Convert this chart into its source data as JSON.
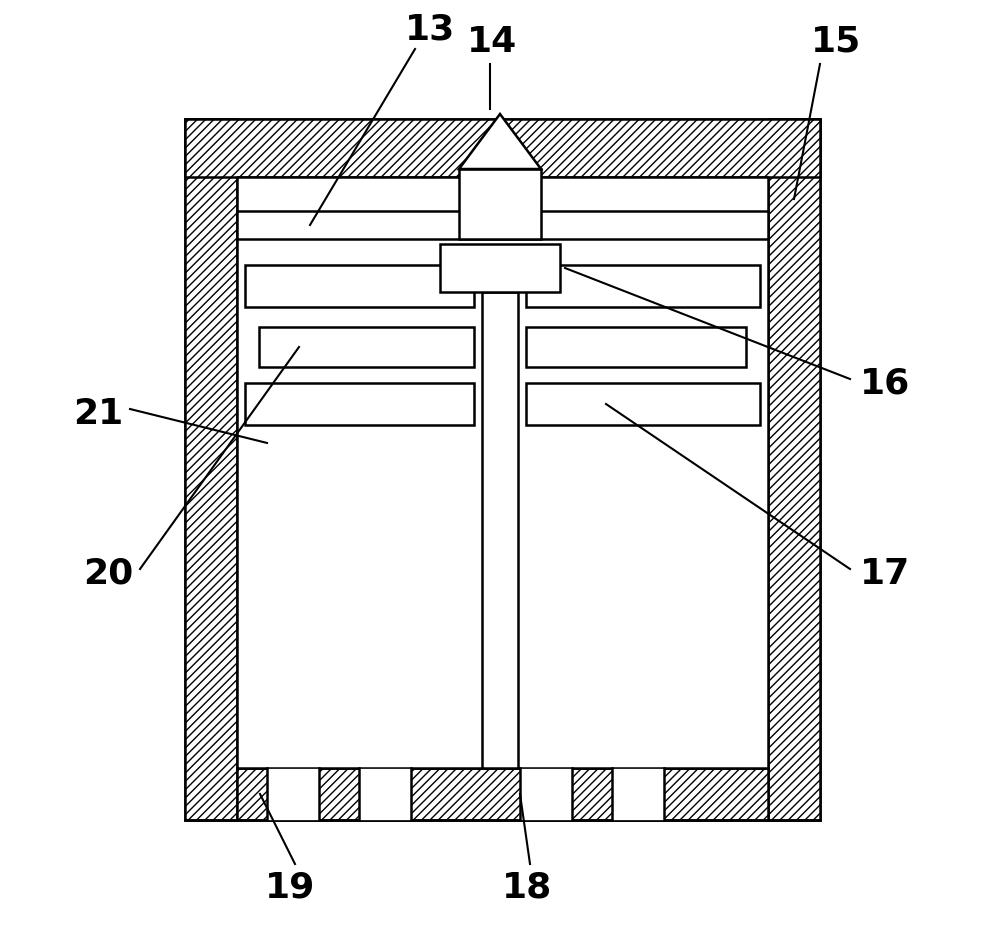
{
  "bg_color": "#ffffff",
  "line_color": "#000000",
  "fig_width": 10.0,
  "fig_height": 9.39,
  "label_fontsize": 26,
  "lw": 1.8
}
